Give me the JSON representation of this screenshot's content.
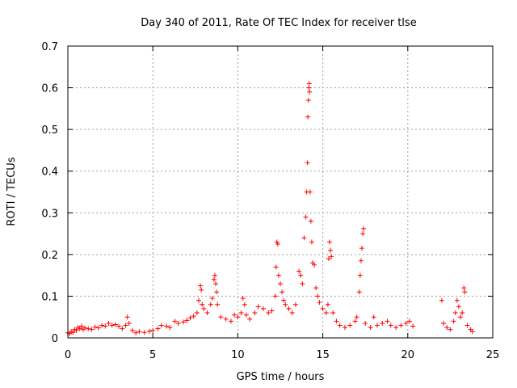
{
  "chart_data": {
    "type": "scatter",
    "title": "Day 340 of 2011, Rate Of TEC Index for receiver tlse",
    "xlabel": "GPS time / hours",
    "ylabel": "ROTI / TECUs",
    "xlim": [
      0,
      25
    ],
    "ylim": [
      0,
      0.7
    ],
    "xticks": [
      "0",
      "5",
      "10",
      "15",
      "20",
      "25"
    ],
    "yticks": [
      "0",
      "0.1",
      "0.2",
      "0.3",
      "0.4",
      "0.5",
      "0.6",
      "0.7"
    ],
    "grid": true,
    "marker": "plus",
    "color": "#ff0000",
    "series": [
      {
        "points": [
          [
            0.0,
            0.012
          ],
          [
            0.1,
            0.01
          ],
          [
            0.2,
            0.015
          ],
          [
            0.3,
            0.013
          ],
          [
            0.4,
            0.02
          ],
          [
            0.5,
            0.018
          ],
          [
            0.6,
            0.025
          ],
          [
            0.7,
            0.022
          ],
          [
            0.8,
            0.028
          ],
          [
            0.9,
            0.02
          ],
          [
            1.0,
            0.024
          ],
          [
            1.2,
            0.022
          ],
          [
            1.4,
            0.02
          ],
          [
            1.6,
            0.026
          ],
          [
            1.8,
            0.024
          ],
          [
            2.0,
            0.03
          ],
          [
            2.2,
            0.028
          ],
          [
            2.4,
            0.035
          ],
          [
            2.6,
            0.03
          ],
          [
            2.8,
            0.032
          ],
          [
            3.0,
            0.028
          ],
          [
            3.2,
            0.022
          ],
          [
            3.4,
            0.03
          ],
          [
            3.5,
            0.05
          ],
          [
            3.6,
            0.035
          ],
          [
            3.8,
            0.018
          ],
          [
            4.0,
            0.012
          ],
          [
            4.2,
            0.015
          ],
          [
            4.5,
            0.013
          ],
          [
            4.8,
            0.016
          ],
          [
            5.0,
            0.018
          ],
          [
            5.3,
            0.022
          ],
          [
            5.5,
            0.03
          ],
          [
            5.8,
            0.028
          ],
          [
            6.0,
            0.025
          ],
          [
            6.3,
            0.04
          ],
          [
            6.5,
            0.035
          ],
          [
            6.8,
            0.038
          ],
          [
            7.0,
            0.042
          ],
          [
            7.2,
            0.048
          ],
          [
            7.4,
            0.052
          ],
          [
            7.6,
            0.06
          ],
          [
            7.7,
            0.09
          ],
          [
            7.8,
            0.125
          ],
          [
            7.85,
            0.115
          ],
          [
            7.9,
            0.08
          ],
          [
            8.0,
            0.07
          ],
          [
            8.2,
            0.06
          ],
          [
            8.4,
            0.08
          ],
          [
            8.5,
            0.095
          ],
          [
            8.6,
            0.14
          ],
          [
            8.65,
            0.15
          ],
          [
            8.7,
            0.13
          ],
          [
            8.75,
            0.11
          ],
          [
            8.8,
            0.08
          ],
          [
            9.0,
            0.05
          ],
          [
            9.3,
            0.045
          ],
          [
            9.6,
            0.04
          ],
          [
            9.8,
            0.055
          ],
          [
            10.0,
            0.05
          ],
          [
            10.2,
            0.06
          ],
          [
            10.3,
            0.095
          ],
          [
            10.4,
            0.08
          ],
          [
            10.5,
            0.055
          ],
          [
            10.7,
            0.045
          ],
          [
            11.0,
            0.06
          ],
          [
            11.2,
            0.075
          ],
          [
            11.5,
            0.07
          ],
          [
            11.8,
            0.06
          ],
          [
            12.0,
            0.065
          ],
          [
            12.2,
            0.1
          ],
          [
            12.25,
            0.17
          ],
          [
            12.3,
            0.23
          ],
          [
            12.35,
            0.225
          ],
          [
            12.4,
            0.15
          ],
          [
            12.5,
            0.13
          ],
          [
            12.6,
            0.11
          ],
          [
            12.7,
            0.09
          ],
          [
            12.8,
            0.08
          ],
          [
            13.0,
            0.07
          ],
          [
            13.2,
            0.06
          ],
          [
            13.4,
            0.08
          ],
          [
            13.6,
            0.16
          ],
          [
            13.7,
            0.15
          ],
          [
            13.8,
            0.13
          ],
          [
            13.9,
            0.24
          ],
          [
            14.0,
            0.29
          ],
          [
            14.05,
            0.35
          ],
          [
            14.1,
            0.42
          ],
          [
            14.12,
            0.53
          ],
          [
            14.15,
            0.57
          ],
          [
            14.18,
            0.6
          ],
          [
            14.2,
            0.61
          ],
          [
            14.22,
            0.59
          ],
          [
            14.25,
            0.35
          ],
          [
            14.3,
            0.28
          ],
          [
            14.35,
            0.23
          ],
          [
            14.4,
            0.18
          ],
          [
            14.5,
            0.175
          ],
          [
            14.6,
            0.12
          ],
          [
            14.7,
            0.1
          ],
          [
            14.8,
            0.085
          ],
          [
            15.0,
            0.07
          ],
          [
            15.2,
            0.06
          ],
          [
            15.3,
            0.08
          ],
          [
            15.35,
            0.19
          ],
          [
            15.4,
            0.23
          ],
          [
            15.45,
            0.21
          ],
          [
            15.5,
            0.195
          ],
          [
            15.6,
            0.06
          ],
          [
            15.8,
            0.04
          ],
          [
            16.0,
            0.03
          ],
          [
            16.3,
            0.025
          ],
          [
            16.6,
            0.03
          ],
          [
            16.9,
            0.04
          ],
          [
            17.0,
            0.05
          ],
          [
            17.15,
            0.11
          ],
          [
            17.2,
            0.15
          ],
          [
            17.25,
            0.185
          ],
          [
            17.3,
            0.215
          ],
          [
            17.35,
            0.25
          ],
          [
            17.4,
            0.262
          ],
          [
            17.5,
            0.035
          ],
          [
            17.8,
            0.025
          ],
          [
            18.0,
            0.05
          ],
          [
            18.2,
            0.03
          ],
          [
            18.5,
            0.035
          ],
          [
            18.8,
            0.04
          ],
          [
            19.0,
            0.03
          ],
          [
            19.3,
            0.025
          ],
          [
            19.6,
            0.03
          ],
          [
            19.9,
            0.035
          ],
          [
            20.1,
            0.04
          ],
          [
            20.3,
            0.028
          ],
          [
            22.0,
            0.09
          ],
          [
            22.1,
            0.035
          ],
          [
            22.3,
            0.025
          ],
          [
            22.5,
            0.02
          ],
          [
            22.7,
            0.04
          ],
          [
            22.8,
            0.06
          ],
          [
            22.9,
            0.09
          ],
          [
            23.0,
            0.075
          ],
          [
            23.1,
            0.05
          ],
          [
            23.2,
            0.06
          ],
          [
            23.3,
            0.12
          ],
          [
            23.35,
            0.11
          ],
          [
            23.5,
            0.03
          ],
          [
            23.7,
            0.02
          ],
          [
            23.8,
            0.015
          ]
        ]
      }
    ]
  }
}
